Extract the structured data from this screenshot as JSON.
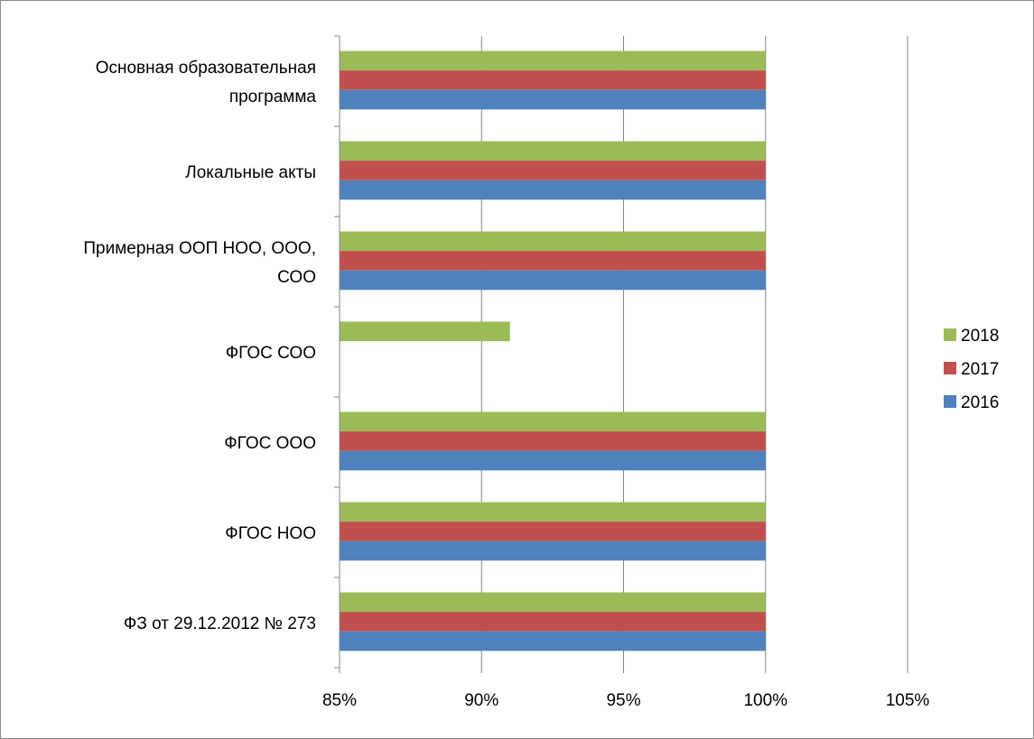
{
  "chart_data": {
    "type": "bar",
    "orientation": "horizontal",
    "categories": [
      [
        "Основная образовательная",
        "программа"
      ],
      [
        "Локальные акты"
      ],
      [
        "Примерная ООП НОО, ООО,",
        "СОО"
      ],
      [
        "ФГОС СОО"
      ],
      [
        "ФГОС ООО"
      ],
      [
        "ФГОС НОО"
      ],
      [
        "ФЗ от 29.12.2012 № 273"
      ]
    ],
    "series": [
      {
        "name": "2018",
        "color": "#9bbb59",
        "values": [
          1.0,
          1.0,
          1.0,
          0.91,
          1.0,
          1.0,
          1.0
        ]
      },
      {
        "name": "2017",
        "color": "#c0504d",
        "values": [
          1.0,
          1.0,
          1.0,
          null,
          1.0,
          1.0,
          1.0
        ]
      },
      {
        "name": "2016",
        "color": "#4f81bd",
        "values": [
          1.0,
          1.0,
          1.0,
          null,
          1.0,
          1.0,
          1.0
        ]
      }
    ],
    "xlim": [
      0.85,
      1.05
    ],
    "xticks": [
      {
        "value": 0.85,
        "label": "85%"
      },
      {
        "value": 0.9,
        "label": "90%"
      },
      {
        "value": 0.95,
        "label": "95%"
      },
      {
        "value": 1.0,
        "label": "100%"
      },
      {
        "value": 1.05,
        "label": "105%"
      }
    ],
    "grid": true,
    "legend_position": "right"
  }
}
